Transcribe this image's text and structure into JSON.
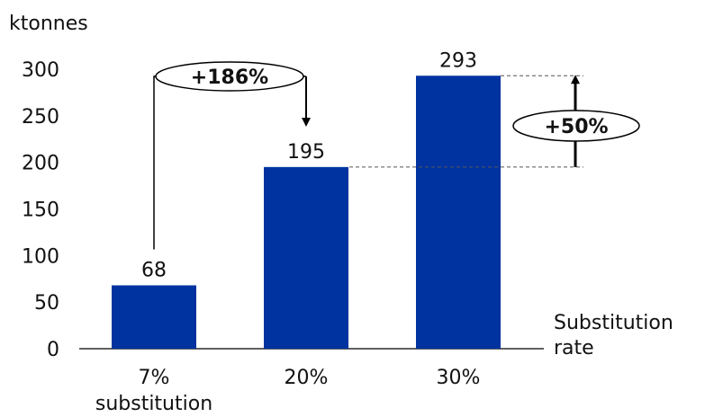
{
  "chart_data": {
    "type": "bar",
    "title": "",
    "ylabel": "ktonnes",
    "xlabel": "Substitution rate",
    "ylim": [
      0,
      300
    ],
    "yticks": [
      0,
      50,
      100,
      150,
      200,
      250,
      300
    ],
    "categories": [
      "7% substitution",
      "20%",
      "30%"
    ],
    "values": [
      68,
      195,
      293
    ],
    "data_labels": [
      "68",
      "195",
      "293"
    ],
    "bar_color": "#0033a0",
    "grid": false,
    "annotations": [
      {
        "text": "+186%",
        "from": "7% substitution",
        "to": "20%"
      },
      {
        "text": "+50%",
        "from": "20%",
        "to": "30%"
      }
    ]
  }
}
